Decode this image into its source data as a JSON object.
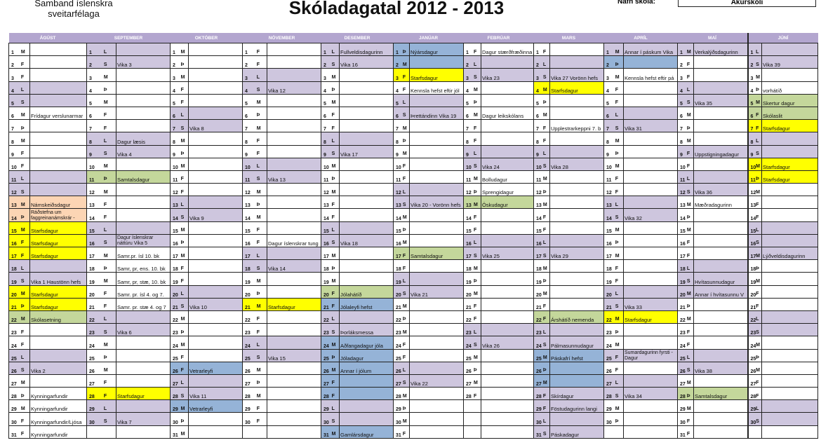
{
  "header": {
    "organization": "Samband íslenskra sveitarfélaga",
    "title": "Skóladagatal 2012 - 2013",
    "school_label": "Nafn skóla:",
    "school_name": "Akurskóli"
  },
  "colors": {
    "header": "#b3a6cf",
    "purple": "#cec6de",
    "yellow": "#ffff00",
    "green": "#c4d79b",
    "blue": "#95b3d7",
    "orange": "#fcd5b4",
    "white": "#ffffff"
  },
  "months": [
    {
      "name": "ÁGÚST",
      "days": 31,
      "weekdays": "MFFLSMÞMFFLSMÞMFFLSMÞMFFLSMÞMFF",
      "events": {
        "6": "Frídagur verslunarmar",
        "13": "Námskeiðsdagur",
        "14": "Ráðstefna um faggreinanámskrár -",
        "15": "Starfsdagur",
        "16": "Starfsdagur",
        "17": "Starfsdagur",
        "19": "Vika 1  Haustönn hefs",
        "20": "Starfsdagur",
        "21": "Starfsdagur",
        "22": "Skólasetning",
        "26": "Vika 2",
        "28": "Kynningarfundir",
        "29": "Kynningarfundir",
        "30": "Kynningarfundir/Ljósa",
        "31": "Kynningarfundir"
      },
      "highlights": {
        "13": "orange",
        "14": "orange",
        "15": "yellow",
        "16": "yellow",
        "17": "yellow",
        "20": "yellow",
        "21": "yellow",
        "22": "green"
      }
    },
    {
      "name": "SEPTEMBER",
      "days": 30,
      "weekdays": "LSMÞMFFLSMÞMFFLSMÞMFFLSMÞMFFLS",
      "events": {
        "2": "Vika 3",
        "8": "Dagur læsis",
        "9": "Vika 4",
        "11": "Samtalsdagur",
        "16": "Dagur íslenskrar náttúru Vika 5",
        "17": "Samr.pr. ísl 10. bk",
        "18": "Samr, pr, ens. 10. bk",
        "19": "Samr, pr, stæ, 10. bk",
        "20": "Samr. pr. ísl 4. og 7.",
        "21": "Samr. pr. stæ 4. og 7",
        "23": "Vika 6",
        "28": "Starfsdagur",
        "30": "Vika 7"
      },
      "highlights": {
        "11": "green",
        "28": "yellow"
      }
    },
    {
      "name": "OKTÓBER",
      "days": 31,
      "weekdays": "MÞMFFLSMÞMFFLSMÞMFFLSMÞMFFLSMÞM",
      "events": {
        "7": "Vika 8",
        "14": "Vika 9",
        "21": "Vika 10",
        "26": "Vetrarleyfi",
        "28": "Vika 11",
        "29": "Vetrarleyfi"
      },
      "highlights": {
        "26": "blue",
        "29": "blue"
      }
    },
    {
      "name": "NÓVEMBER",
      "days": 30,
      "weekdays": "FFLSMÞMFFLSMÞMFFLSMÞMFFLSMÞMFF",
      "events": {
        "4": "Vika 12",
        "11": "Vika 13",
        "16": "Dagur íslenskrar tung",
        "18": "Vika 14",
        "21": "Starfsdagur",
        "25": "Vika 15"
      },
      "highlights": {
        "21": "yellow"
      }
    },
    {
      "name": "DESEMBER",
      "days": 31,
      "weekdays": "LSMÞMFFLSMÞMFFLSMÞMFFLSMÞMFFLSM",
      "events": {
        "1": "Fullveldisdagurinn",
        "2": "Vika 16",
        "9": "Vika 17",
        "16": "Vika 18",
        "20": "Jólahátíð",
        "21": "Jólaleyfi hefst",
        "23": "Þorláksmessa",
        "24": "Aðfangadagur jóla",
        "25": "Jóladagur",
        "26": "Annar í jólum",
        "31": "Gamlársdagur"
      },
      "highlights": {
        "20": "green",
        "21": "blue",
        "24": "blue",
        "25": "blue",
        "26": "blue",
        "27": "blue",
        "28": "blue",
        "31": "blue"
      }
    },
    {
      "name": "JANÚAR",
      "days": 31,
      "weekdays": "ÞMFFLSMÞMFFLSMÞMFFLSMÞMFFLSMÞMF",
      "events": {
        "1": "Nýársdagur",
        "3": "Starfsdagur",
        "4": "Kennsla hefst eftir jól",
        "6": "Þrettándinn Vika 19",
        "13": "Vika 20 - Vorönn hefs",
        "17": "Samtalsdagur",
        "20": "Vika 21",
        "27": "Vika 22"
      },
      "highlights": {
        "1": "blue",
        "2": "blue",
        "3": "yellow",
        "17": "green"
      }
    },
    {
      "name": "FEBRÚAR",
      "days": 28,
      "weekdays": "FLSMÞMFFLSMÞMFFLSMÞMFFLSMÞMF",
      "events": {
        "1": "Dagur stærðfræðinna",
        "3": "Vika 23",
        "6": "Dagur leikskólans",
        "10": "Vika 24",
        "11": "Bolludagur",
        "12": "Sprengidagur",
        "13": "Öskudagur",
        "17": "Vika 25",
        "24": "Vika 26"
      },
      "highlights": {
        "13": "green"
      }
    },
    {
      "name": "MARS",
      "days": 31,
      "weekdays": "FLSMÞMFFLSMÞMFFLSMÞMFFLSMÞMFFLS",
      "events": {
        "3": "Vika 27  Vorönn hefs",
        "4": "Starfsdagur",
        "7": "Upplestrarkeppni 7. b",
        "10": "Vika 28",
        "17": "Vika 29",
        "22": "Árshátíð nemenda",
        "24": "Pálmasunnudagur",
        "25": "Páskafrí hefst",
        "28": "Skírdagur",
        "29": "Föstudagurinn langi",
        "31": "Páskadagur"
      },
      "highlights": {
        "4": "yellow",
        "22": "green",
        "25": "blue",
        "26": "blue",
        "27": "blue",
        "28": "purple",
        "29": "purple"
      }
    },
    {
      "name": "APRÍL",
      "days": 30,
      "weekdays": "MÞMFFLSMÞMFFLSMÞMFFLSMÞMFFLSMÞ",
      "events": {
        "1": "Annar í páskum  Vika",
        "3": "Kennsla hefst eftir pá",
        "7": "Vika 31",
        "14": "Vika 32",
        "21": "Vika 33",
        "22": "Starfsdagur",
        "25": "Sumardagurinn fyrsti - Dagur",
        "28": "Vika 34"
      },
      "highlights": {
        "1": "purple",
        "2": "blue",
        "22": "yellow",
        "25": "purple"
      }
    },
    {
      "name": "MAÍ",
      "days": 31,
      "weekdays": "MFFLSMÞMFFLSMÞMFFLSMÞMFFLSMÞMFF",
      "events": {
        "1": "Verkalýðsdagurinn",
        "5": "Vika 35",
        "9": "Uppstigningadagur",
        "12": "Vika 36",
        "13": "Mæðradagurinn",
        "19": "Hvítasunnudagur",
        "20": "Annar í hvítasunnu V",
        "26": "Vika 38",
        "28": "Samtalsdagur"
      },
      "highlights": {
        "1": "purple",
        "9": "purple",
        "20": "purple",
        "28": "green"
      }
    },
    {
      "name": "JÚNÍ",
      "days": 30,
      "weekdays": "LSMÞMFFLSMÞMFFLSMÞMFFLSMÞMFFLS",
      "events": {
        "2": "Vika 39",
        "4": "vorhátíð",
        "5": "Skertur dagur",
        "6": "Skólaslit",
        "7": "Starfsdagur",
        "10": "Starfsdagur",
        "11": "Starfsdagur",
        "17": "Lýðveldisdagurinn"
      },
      "highlights": {
        "5": "green",
        "6": "green",
        "7": "yellow",
        "10": "yellow",
        "11": "yellow",
        "17": "purple"
      }
    }
  ]
}
